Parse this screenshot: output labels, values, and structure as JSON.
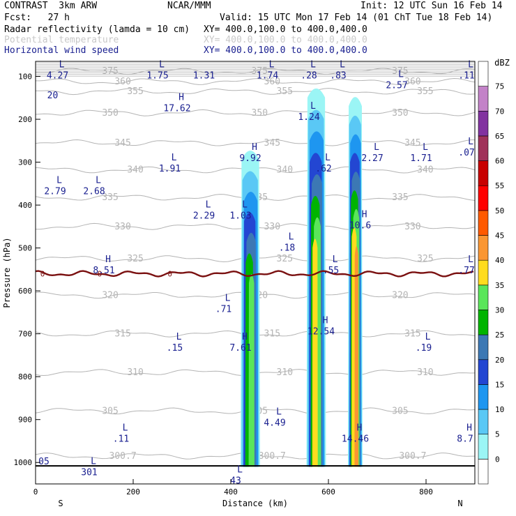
{
  "header": {
    "model": "CONTRAST  3km ARW",
    "source": "NCAR/MMM",
    "init": "Init: 12 UTC Sun 16 Feb 14",
    "fcst": "Fcst:   27 h",
    "valid": "Valid: 15 UTC Mon 17 Feb 14 (01 ChT Tue 18 Feb 14)",
    "field1": "Radar reflectivity (lamda = 10 cm)",
    "field1_xy": "XY= 400.0,100.0 to 400.0,400.0",
    "field2": "Potential temperature",
    "field2_xy": "XY= 400.0,100.0 to 400.0,400.0",
    "field3": "Horizontal wind speed",
    "field3_xy": "XY= 400.0,100.0 to 400.0,400.0"
  },
  "colors": {
    "navy": "#1a2090",
    "theta": "#b4b4b4",
    "freezing": "#7a1010"
  },
  "chart_data": {
    "type": "heatmap",
    "title": "Radar reflectivity (lamda = 10 cm)",
    "xlabel": "Distance (km)",
    "ylabel": "Pressure (hPa)",
    "xlim": [
      0,
      900
    ],
    "ylim": [
      1050,
      65
    ],
    "x_ticks": [
      "0",
      "200",
      "400",
      "600",
      "800"
    ],
    "y_ticks": [
      "100",
      "200",
      "300",
      "400",
      "500",
      "600",
      "700",
      "800",
      "900",
      "1000"
    ],
    "left_label": "S",
    "right_label": "N",
    "colorbar": {
      "unit": "dBZ",
      "ticks": [
        "0",
        "5",
        "10",
        "15",
        "20",
        "25",
        "30",
        "35",
        "40",
        "45",
        "50",
        "55",
        "60",
        "65",
        "70",
        "75"
      ],
      "colors": [
        "#ffffff",
        "#9bf5f5",
        "#5ac8f5",
        "#1e96f0",
        "#2346d2",
        "#3c78b4",
        "#00b400",
        "#5ae65a",
        "#ffdc1e",
        "#fa9632",
        "#ff5a00",
        "#ff0000",
        "#c80000",
        "#a0325a",
        "#8232a0",
        "#c382c8",
        "#ffffff"
      ]
    },
    "cells": [
      {
        "x0": 420,
        "x1": 460,
        "top": 265,
        "bottom": 1010,
        "max": 35
      },
      {
        "x0": 555,
        "x1": 595,
        "top": 120,
        "bottom": 1010,
        "max": 40
      },
      {
        "x0": 640,
        "x1": 670,
        "top": 140,
        "bottom": 1010,
        "max": 45
      }
    ],
    "theta_contours": [
      {
        "label": "375",
        "p": 88
      },
      {
        "label": "360",
        "p": 112
      },
      {
        "label": "355",
        "p": 135
      },
      {
        "label": "350",
        "p": 185
      },
      {
        "label": "345",
        "p": 255
      },
      {
        "label": "340",
        "p": 318
      },
      {
        "label": "335",
        "p": 382
      },
      {
        "label": "330",
        "p": 450
      },
      {
        "label": "325",
        "p": 525
      },
      {
        "label": "320",
        "p": 610
      },
      {
        "label": "315",
        "p": 700
      },
      {
        "label": "310",
        "p": 790
      },
      {
        "label": "305",
        "p": 880
      },
      {
        "label": "300.7",
        "p": 985
      }
    ],
    "freezing_level": {
      "label": "0",
      "p": 560
    },
    "wind_labels": [
      {
        "label": "L",
        "value": "4.27",
        "x": 45,
        "p": 85
      },
      {
        "label": "L",
        "value": "1.75",
        "x": 250,
        "p": 85
      },
      {
        "label": "",
        "value": "1.31",
        "x": 345,
        "p": 85
      },
      {
        "label": "L",
        "value": "1.74",
        "x": 475,
        "p": 85
      },
      {
        "label": "L",
        "value": ".28",
        "x": 560,
        "p": 85
      },
      {
        "label": "L",
        "value": ".83",
        "x": 620,
        "p": 85
      },
      {
        "label": "L",
        "value": "2.57",
        "x": 740,
        "p": 108
      },
      {
        "label": "L",
        "value": ".11",
        "x": 890,
        "p": 85
      },
      {
        "label": "",
        "value": "20",
        "x": 35,
        "p": 132
      },
      {
        "label": "H",
        "value": "17.62",
        "x": 290,
        "p": 162
      },
      {
        "label": "L",
        "value": "1.24",
        "x": 560,
        "p": 182
      },
      {
        "label": "L",
        "value": "2.27",
        "x": 690,
        "p": 278
      },
      {
        "label": "H",
        "value": "9.92",
        "x": 440,
        "p": 278
      },
      {
        "label": "L",
        "value": ".62",
        "x": 590,
        "p": 302
      },
      {
        "label": "L",
        "value": "1.71",
        "x": 790,
        "p": 278
      },
      {
        "label": "L",
        "value": ".07",
        "x": 885,
        "p": 265
      },
      {
        "label": "L",
        "value": "1.91",
        "x": 275,
        "p": 302
      },
      {
        "label": "L",
        "value": "2.79",
        "x": 40,
        "p": 355
      },
      {
        "label": "L",
        "value": "2.68",
        "x": 120,
        "p": 355
      },
      {
        "label": "L",
        "value": "2.29",
        "x": 345,
        "p": 412
      },
      {
        "label": "L",
        "value": "1.03",
        "x": 420,
        "p": 412
      },
      {
        "label": "H",
        "value": "10.6",
        "x": 665,
        "p": 435
      },
      {
        "label": "L",
        "value": ".18",
        "x": 515,
        "p": 487
      },
      {
        "label": "L",
        "value": ".55",
        "x": 605,
        "p": 540
      },
      {
        "label": "H",
        "value": "8.51",
        "x": 140,
        "p": 540
      },
      {
        "label": "L",
        "value": ".77",
        "x": 890,
        "p": 540
      },
      {
        "label": "L",
        "value": ".71",
        "x": 385,
        "p": 630
      },
      {
        "label": "H",
        "value": "12.54",
        "x": 585,
        "p": 682
      },
      {
        "label": "L",
        "value": ".15",
        "x": 285,
        "p": 720
      },
      {
        "label": "H",
        "value": "7.61",
        "x": 420,
        "p": 720
      },
      {
        "label": "L",
        "value": ".19",
        "x": 795,
        "p": 720
      },
      {
        "label": "L",
        "value": "4.49",
        "x": 490,
        "p": 895
      },
      {
        "label": "L",
        "value": ".11",
        "x": 175,
        "p": 932
      },
      {
        "label": "H",
        "value": "14.46",
        "x": 655,
        "p": 932
      },
      {
        "label": "H",
        "value": "8.7",
        "x": 880,
        "p": 932
      },
      {
        "label": "",
        "value": "05",
        "x": 15,
        "p": 985
      },
      {
        "label": "L",
        "value": "301",
        "x": 110,
        "p": 1010
      },
      {
        "label": "L",
        "value": "43",
        "x": 410,
        "p": 1030
      }
    ]
  }
}
